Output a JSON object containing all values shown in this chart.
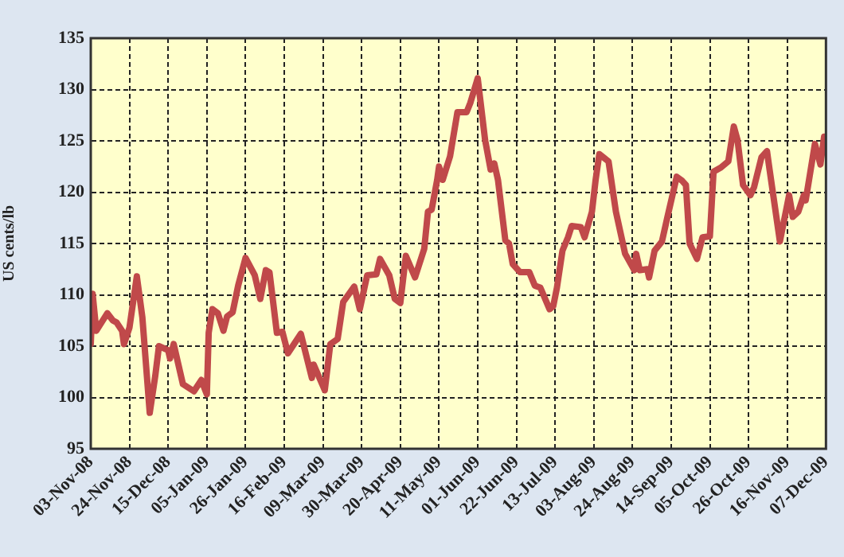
{
  "chart_data": {
    "type": "line",
    "ylabel": "US cents/lb",
    "x": [
      "2008-11-03",
      "2008-11-04",
      "2008-11-06",
      "2008-11-12",
      "2008-11-15",
      "2008-11-17",
      "2008-11-20",
      "2008-11-21",
      "2008-11-24",
      "2008-11-28",
      "2008-12-01",
      "2008-12-05",
      "2008-12-08",
      "2008-12-10",
      "2008-12-15",
      "2008-12-16",
      "2008-12-18",
      "2008-12-23",
      "2008-12-29",
      "2009-01-02",
      "2009-01-05",
      "2009-01-06",
      "2009-01-08",
      "2009-01-11",
      "2009-01-14",
      "2009-01-16",
      "2009-01-19",
      "2009-01-22",
      "2009-01-26",
      "2009-01-31",
      "2009-02-03",
      "2009-02-06",
      "2009-02-08",
      "2009-02-12",
      "2009-02-15",
      "2009-02-18",
      "2009-02-25",
      "2009-03-03",
      "2009-03-04",
      "2009-03-10",
      "2009-03-13",
      "2009-03-17",
      "2009-03-20",
      "2009-03-26",
      "2009-03-29",
      "2009-04-02",
      "2009-04-07",
      "2009-04-09",
      "2009-04-14",
      "2009-04-17",
      "2009-04-20",
      "2009-04-23",
      "2009-04-28",
      "2009-05-03",
      "2009-05-05",
      "2009-05-07",
      "2009-05-10",
      "2009-05-11",
      "2009-05-13",
      "2009-05-17",
      "2009-05-21",
      "2009-05-26",
      "2009-05-28",
      "2009-06-01",
      "2009-06-05",
      "2009-06-08",
      "2009-06-10",
      "2009-06-12",
      "2009-06-16",
      "2009-06-18",
      "2009-06-20",
      "2009-06-24",
      "2009-06-29",
      "2009-07-02",
      "2009-07-05",
      "2009-07-10",
      "2009-07-12",
      "2009-07-14",
      "2009-07-17",
      "2009-07-20",
      "2009-07-22",
      "2009-07-27",
      "2009-07-29",
      "2009-08-02",
      "2009-08-04",
      "2009-08-06",
      "2009-08-11",
      "2009-08-15",
      "2009-08-20",
      "2009-08-25",
      "2009-08-26",
      "2009-08-28",
      "2009-09-01",
      "2009-09-02",
      "2009-09-05",
      "2009-09-09",
      "2009-09-12",
      "2009-09-17",
      "2009-09-20",
      "2009-09-22",
      "2009-09-24",
      "2009-09-28",
      "2009-10-01",
      "2009-10-05",
      "2009-10-07",
      "2009-10-11",
      "2009-10-15",
      "2009-10-18",
      "2009-10-20",
      "2009-10-23",
      "2009-10-27",
      "2009-10-29",
      "2009-11-02",
      "2009-11-05",
      "2009-11-06",
      "2009-11-12",
      "2009-11-17",
      "2009-11-19",
      "2009-11-22",
      "2009-11-25",
      "2009-11-26",
      "2009-12-01",
      "2009-12-04",
      "2009-12-06"
    ],
    "series": [
      {
        "color": "#c0494a",
        "values": [
          105.2,
          110.1,
          106.5,
          108.2,
          107.5,
          107.3,
          106.5,
          105.2,
          106.8,
          111.8,
          107.8,
          98.5,
          102.1,
          105,
          104.6,
          103.8,
          105.2,
          101.3,
          100.6,
          101.7,
          100.3,
          106.3,
          108.6,
          108.2,
          106.5,
          107.9,
          108.3,
          110.9,
          113.6,
          111.9,
          109.6,
          112.4,
          112.2,
          106.3,
          106.4,
          104.3,
          106.2,
          101.9,
          103.2,
          100.7,
          105.2,
          105.7,
          109.3,
          110.8,
          108.6,
          111.9,
          112,
          113.5,
          111.9,
          109.6,
          109.2,
          113.8,
          111.7,
          114.5,
          118.1,
          118.3,
          121.2,
          122.5,
          121.2,
          123.5,
          127.8,
          127.8,
          128.7,
          131.1,
          125.1,
          122.2,
          122.8,
          121.2,
          115.3,
          115,
          113,
          112.2,
          112.2,
          110.9,
          110.7,
          108.6,
          108.9,
          110.7,
          114.3,
          115.6,
          116.7,
          116.6,
          115.6,
          118.1,
          121.2,
          123.7,
          123,
          118.1,
          114,
          112.4,
          114,
          112.4,
          112.5,
          111.7,
          114.3,
          115.2,
          117.6,
          121.5,
          121.1,
          120.7,
          115,
          113.5,
          115.6,
          115.7,
          122,
          122.4,
          123,
          126.4,
          125.1,
          120.7,
          119.7,
          120.5,
          123.4,
          124,
          122.7,
          115.2,
          119.7,
          117.6,
          118.1,
          119.7,
          119.2,
          124.7,
          122.7,
          125.4
        ]
      }
    ],
    "xlim": [
      "2008-11-03",
      "2009-12-07"
    ],
    "xticks": [
      {
        "value": "2008-11-03",
        "label": "03-Nov-08"
      },
      {
        "value": "2008-11-24",
        "label": "24-Nov-08"
      },
      {
        "value": "2008-12-15",
        "label": "15-Dec-08"
      },
      {
        "value": "2009-01-05",
        "label": "05-Jan-09"
      },
      {
        "value": "2009-01-26",
        "label": "26-Jan-09"
      },
      {
        "value": "2009-02-16",
        "label": "16-Feb-09"
      },
      {
        "value": "2009-03-09",
        "label": "09-Mar-09"
      },
      {
        "value": "2009-03-30",
        "label": "30-Mar-09"
      },
      {
        "value": "2009-04-20",
        "label": "20-Apr-09"
      },
      {
        "value": "2009-05-11",
        "label": "11-May-09"
      },
      {
        "value": "2009-06-01",
        "label": "01-Jun-09"
      },
      {
        "value": "2009-06-22",
        "label": "22-Jun-09"
      },
      {
        "value": "2009-07-13",
        "label": "13-Jul-09"
      },
      {
        "value": "2009-08-03",
        "label": "03-Aug-09"
      },
      {
        "value": "2009-08-24",
        "label": "24-Aug-09"
      },
      {
        "value": "2009-09-14",
        "label": "14-Sep-09"
      },
      {
        "value": "2009-10-05",
        "label": "05-Oct-09"
      },
      {
        "value": "2009-10-26",
        "label": "26-Oct-09"
      },
      {
        "value": "2009-11-16",
        "label": "16-Nov-09"
      },
      {
        "value": "2009-12-07",
        "label": "07-Dec-09"
      }
    ],
    "ylim": [
      95,
      135
    ],
    "yticks": [
      95,
      100,
      105,
      110,
      115,
      120,
      125,
      130,
      135
    ],
    "grid": true,
    "legend": false,
    "marker": "none",
    "line_style": "solid"
  }
}
